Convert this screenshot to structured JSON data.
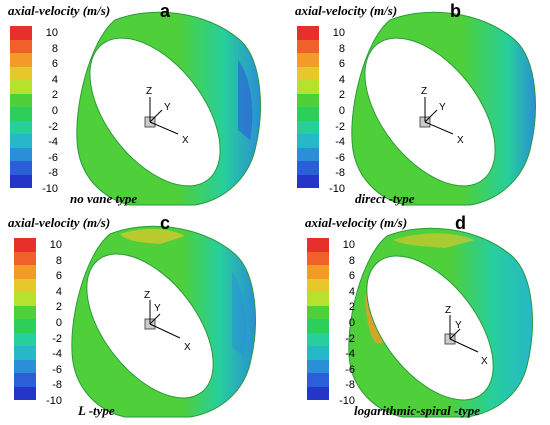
{
  "colorbar": {
    "title": "axial-velocity (m/s)",
    "ticks": [
      "10",
      "8",
      "6",
      "4",
      "2",
      "0",
      "-2",
      "-4",
      "-6",
      "-8",
      "-10"
    ],
    "colors": [
      "#e8302a",
      "#f0602a",
      "#f39a28",
      "#e6c82a",
      "#b8e02e",
      "#4fd03a",
      "#2dcf5a",
      "#27cf9c",
      "#26b8c8",
      "#2a8fd6",
      "#2b5fd8",
      "#2436c8"
    ]
  },
  "axes": {
    "z": "Z",
    "y": "Y",
    "x": "X"
  },
  "panels": [
    {
      "id": "a",
      "letter": "a",
      "caption": "no vane type"
    },
    {
      "id": "b",
      "letter": "b",
      "caption": "direct -type"
    },
    {
      "id": "c",
      "letter": "c",
      "caption": "L -type"
    },
    {
      "id": "d",
      "letter": "d",
      "caption": "logarithmic-spiral -type"
    }
  ]
}
